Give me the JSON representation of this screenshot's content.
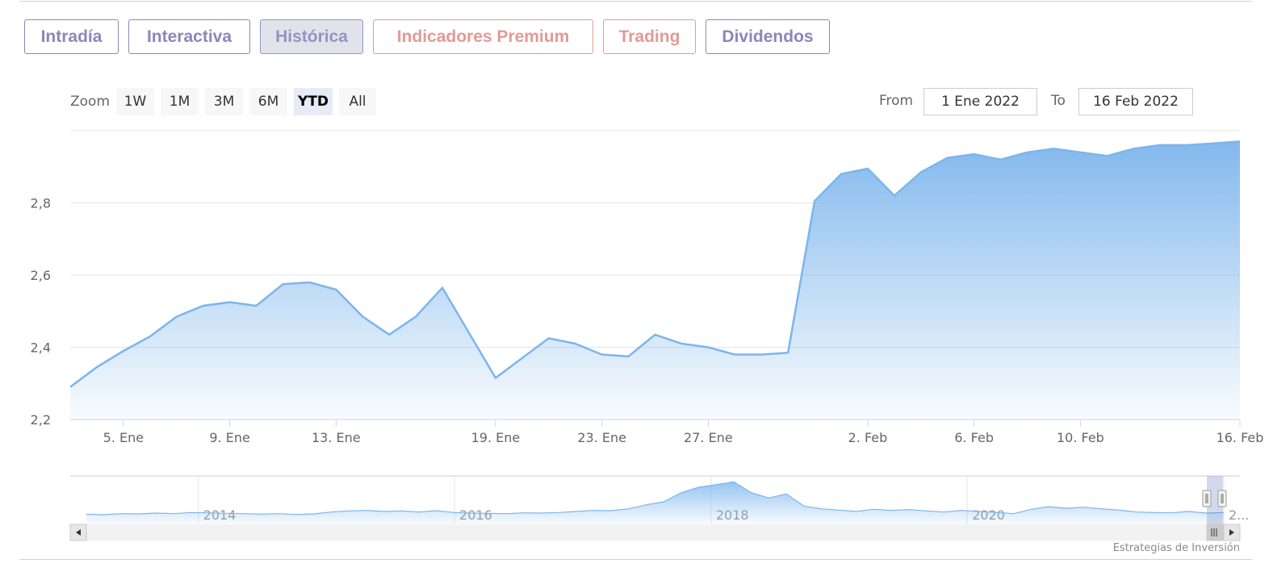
{
  "tabs": [
    {
      "label": "Intradía",
      "color": "purple",
      "active": false
    },
    {
      "label": "Interactiva",
      "color": "purple",
      "active": false
    },
    {
      "label": "Histórica",
      "color": "purple",
      "active": true
    },
    {
      "label": "Indicadores Premium",
      "color": "red",
      "active": false
    },
    {
      "label": "Trading",
      "color": "red",
      "active": false
    },
    {
      "label": "Dividendos",
      "color": "purple",
      "active": false
    }
  ],
  "range_selector": {
    "zoom_label": "Zoom",
    "buttons": [
      "1W",
      "1M",
      "3M",
      "6M",
      "YTD",
      "All"
    ],
    "selected": "YTD",
    "from_label": "From",
    "from_value": "1 Ene 2022",
    "to_label": "To",
    "to_value": "16 Feb 2022"
  },
  "credit": "Estrategias de Inversión",
  "colors": {
    "line": "#7cb5ec",
    "tab_purple": "#8c86bd",
    "tab_red": "#e39a95"
  },
  "chart_data": {
    "type": "area",
    "title": "",
    "xlabel": "",
    "ylabel": "",
    "x_range": [
      "2022-01-03",
      "2022-02-16"
    ],
    "ylim": [
      2.2,
      3.0
    ],
    "y_ticks": [
      2.2,
      2.4,
      2.6,
      2.8
    ],
    "y_tick_labels": [
      "2,2",
      "2,4",
      "2,6",
      "2,8"
    ],
    "x_ticks": [
      {
        "date": "2022-01-05",
        "label": "5. Ene"
      },
      {
        "date": "2022-01-09",
        "label": "9. Ene"
      },
      {
        "date": "2022-01-13",
        "label": "13. Ene"
      },
      {
        "date": "2022-01-19",
        "label": "19. Ene"
      },
      {
        "date": "2022-01-23",
        "label": "23. Ene"
      },
      {
        "date": "2022-01-27",
        "label": "27. Ene"
      },
      {
        "date": "2022-02-02",
        "label": "2. Feb"
      },
      {
        "date": "2022-02-06",
        "label": "6. Feb"
      },
      {
        "date": "2022-02-10",
        "label": "10. Feb"
      },
      {
        "date": "2022-02-16",
        "label": "16. Feb"
      }
    ],
    "grid": true,
    "series": [
      {
        "x": [
          "2022-01-03",
          "2022-01-04",
          "2022-01-05",
          "2022-01-06",
          "2022-01-07",
          "2022-01-08",
          "2022-01-09",
          "2022-01-10",
          "2022-01-11",
          "2022-01-12",
          "2022-01-13",
          "2022-01-14",
          "2022-01-15",
          "2022-01-16",
          "2022-01-17",
          "2022-01-18",
          "2022-01-19",
          "2022-01-20",
          "2022-01-21",
          "2022-01-22",
          "2022-01-23",
          "2022-01-24",
          "2022-01-25",
          "2022-01-26",
          "2022-01-27",
          "2022-01-28",
          "2022-01-29",
          "2022-01-30",
          "2022-01-31",
          "2022-02-01",
          "2022-02-02",
          "2022-02-03",
          "2022-02-04",
          "2022-02-05",
          "2022-02-06",
          "2022-02-07",
          "2022-02-08",
          "2022-02-09",
          "2022-02-10",
          "2022-02-11",
          "2022-02-12",
          "2022-02-13",
          "2022-02-14",
          "2022-02-15",
          "2022-02-16"
        ],
        "values": [
          2.29,
          2.345,
          2.39,
          2.43,
          2.485,
          2.515,
          2.525,
          2.515,
          2.575,
          2.58,
          2.56,
          2.485,
          2.435,
          2.485,
          2.565,
          2.44,
          2.315,
          2.37,
          2.425,
          2.41,
          2.38,
          2.375,
          2.435,
          2.41,
          2.4,
          2.38,
          2.38,
          2.385,
          2.805,
          2.88,
          2.895,
          2.82,
          2.885,
          2.925,
          2.935,
          2.92,
          2.94,
          2.95,
          2.94,
          2.93,
          2.95,
          2.96,
          2.96,
          2.965,
          2.97
        ]
      }
    ],
    "navigator": {
      "year_labels": [
        {
          "date": "2014-01-01",
          "label": "2014"
        },
        {
          "date": "2016-01-01",
          "label": "2016"
        },
        {
          "date": "2018-01-01",
          "label": "2018"
        },
        {
          "date": "2020-01-01",
          "label": "2020"
        },
        {
          "date": "2022-01-01",
          "label": "2..."
        }
      ],
      "x_range": [
        "2013-01-01",
        "2022-02-16"
      ],
      "values": [
        2.1,
        2.08,
        2.12,
        2.11,
        2.14,
        2.12,
        2.16,
        2.15,
        2.13,
        2.12,
        2.1,
        2.12,
        2.09,
        2.11,
        2.18,
        2.22,
        2.24,
        2.2,
        2.22,
        2.18,
        2.23,
        2.16,
        2.14,
        2.13,
        2.12,
        2.15,
        2.14,
        2.16,
        2.2,
        2.24,
        2.23,
        2.3,
        2.45,
        2.56,
        2.9,
        3.1,
        3.2,
        3.3,
        2.9,
        2.7,
        2.85,
        2.4,
        2.3,
        2.25,
        2.2,
        2.28,
        2.24,
        2.27,
        2.22,
        2.18,
        2.24,
        2.2,
        2.16,
        2.12,
        2.28,
        2.38,
        2.32,
        2.36,
        2.3,
        2.25,
        2.18,
        2.16,
        2.15,
        2.2,
        2.14,
        2.16
      ]
    }
  }
}
